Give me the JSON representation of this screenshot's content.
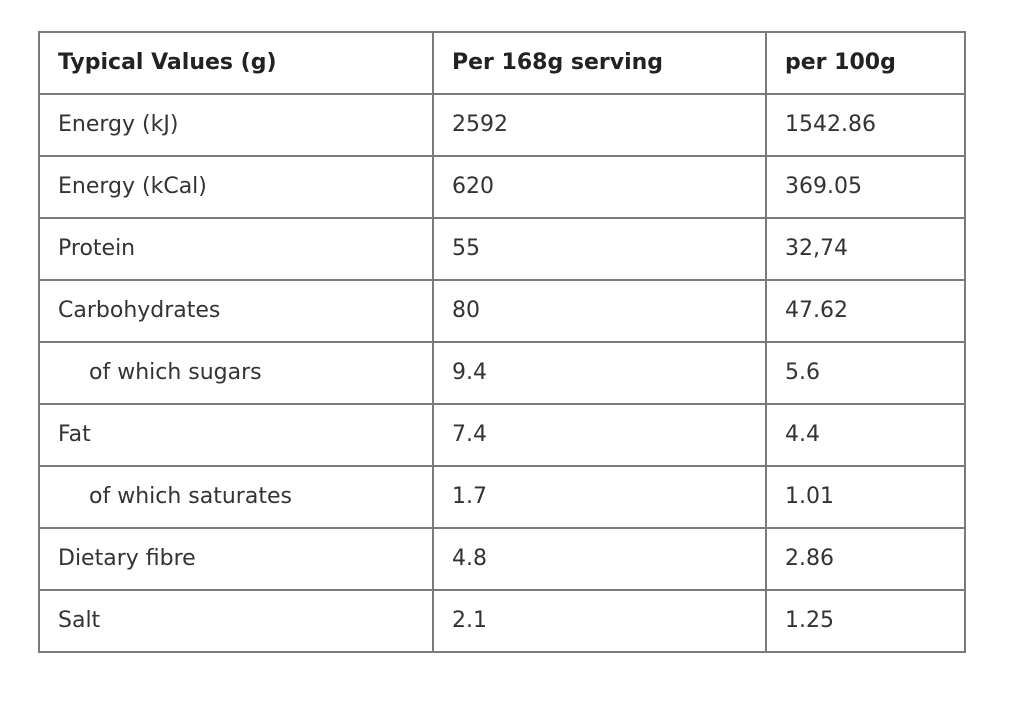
{
  "table": {
    "headers": [
      "Typical Values (g)",
      "Per 168g serving",
      "per 100g"
    ],
    "rows": [
      {
        "label": "Energy (kJ)",
        "serving": "2592",
        "per100": "1542.86",
        "sub": false
      },
      {
        "label": "Energy (kCal)",
        "serving": "620",
        "per100": "369.05",
        "sub": false
      },
      {
        "label": "Protein",
        "serving": "55",
        "per100": "32,74",
        "sub": false
      },
      {
        "label": "Carbohydrates",
        "serving": "80",
        "per100": "47.62",
        "sub": false
      },
      {
        "label": "of which sugars",
        "serving": "9.4",
        "per100": "5.6",
        "sub": true
      },
      {
        "label": "Fat",
        "serving": "7.4",
        "per100": "4.4",
        "sub": false
      },
      {
        "label": "of which saturates",
        "serving": "1.7",
        "per100": "1.01",
        "sub": true
      },
      {
        "label": "Dietary fibre",
        "serving": "4.8",
        "per100": "2.86",
        "sub": false
      },
      {
        "label": "Salt",
        "serving": "2.1",
        "per100": "1.25",
        "sub": false
      }
    ]
  }
}
